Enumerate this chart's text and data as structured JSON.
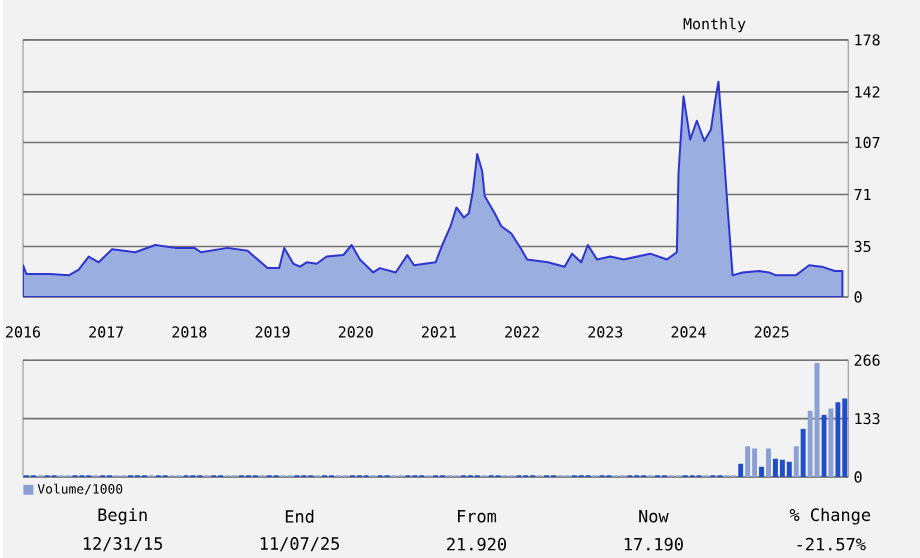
{
  "chart_data": [
    {
      "type": "area",
      "subtitle": "Monthly",
      "xlim": [
        2016.0,
        2025.92
      ],
      "ylim": [
        0,
        178
      ],
      "yticks": [
        0,
        35,
        71,
        107,
        142,
        178
      ],
      "xticks": [
        2016,
        2017,
        2018,
        2019,
        2020,
        2021,
        2022,
        2023,
        2024,
        2025
      ],
      "grid": "y",
      "series": [
        {
          "color": "#9aaee0",
          "x": [
            2016.0,
            2016.04,
            2016.32,
            2016.55,
            2016.67,
            2016.79,
            2016.91,
            2017.07,
            2017.35,
            2017.59,
            2017.83,
            2018.06,
            2018.14,
            2018.46,
            2018.7,
            2018.82,
            2018.94,
            2019.08,
            2019.14,
            2019.25,
            2019.33,
            2019.41,
            2019.53,
            2019.65,
            2019.85,
            2019.95,
            2020.05,
            2020.21,
            2020.29,
            2020.48,
            2020.62,
            2020.7,
            2020.96,
            2021.04,
            2021.14,
            2021.21,
            2021.3,
            2021.36,
            2021.41,
            2021.46,
            2021.52,
            2021.55,
            2021.67,
            2021.75,
            2021.87,
            2021.99,
            2022.06,
            2022.31,
            2022.51,
            2022.6,
            2022.71,
            2022.79,
            2022.9,
            2023.06,
            2023.22,
            2023.54,
            2023.74,
            2023.86,
            2023.88,
            2023.94,
            2024.02,
            2024.1,
            2024.19,
            2024.27,
            2024.32,
            2024.36,
            2024.41,
            2024.44,
            2024.48,
            2024.53,
            2024.65,
            2024.85,
            2024.97,
            2025.05,
            2025.29,
            2025.45,
            2025.6,
            2025.76,
            2025.85
          ],
          "values": [
            22,
            16,
            16,
            15,
            19,
            28,
            24,
            33,
            31,
            36,
            34,
            34,
            31,
            34,
            32,
            26,
            20,
            20,
            34,
            23,
            21,
            24,
            23,
            28,
            29,
            36,
            26,
            17,
            20,
            17,
            29,
            22,
            24,
            36,
            49,
            62,
            55,
            58,
            74,
            99,
            87,
            70,
            58,
            49,
            44,
            33,
            26,
            24,
            21,
            30,
            24,
            36,
            26,
            28,
            26,
            30,
            26,
            31,
            86,
            139,
            109,
            122,
            108,
            116,
            136,
            149,
            111,
            86,
            54,
            15,
            17,
            18,
            17,
            15,
            15,
            22,
            21,
            18,
            18
          ]
        }
      ]
    },
    {
      "type": "bar",
      "ylim": [
        0,
        266
      ],
      "yticks": [
        0,
        133,
        266
      ],
      "grid": "y",
      "tick_labels": "y",
      "legend": "bottom left",
      "categories": [
        null,
        null,
        null,
        null,
        null,
        null,
        null,
        null,
        null,
        null,
        null,
        null,
        null,
        null,
        null,
        null,
        null,
        null,
        null,
        null,
        null,
        null,
        null,
        null,
        null,
        null,
        null,
        null,
        null,
        null,
        null,
        null,
        null,
        null,
        null,
        null,
        null,
        null,
        null,
        null,
        null,
        null,
        null,
        null,
        null,
        null,
        null,
        null,
        null,
        null,
        null,
        null,
        null,
        null,
        null,
        null,
        null,
        null,
        null,
        null,
        null,
        null,
        null,
        null,
        null,
        null,
        null,
        null,
        null,
        null,
        null,
        null,
        null,
        null,
        null,
        null,
        null,
        null,
        null,
        null,
        null,
        null,
        null,
        null,
        null,
        null,
        null,
        null,
        null,
        null,
        null,
        null,
        null,
        null,
        null,
        null,
        null,
        null,
        null,
        null,
        null,
        null,
        null,
        null,
        null,
        null,
        null,
        null,
        null,
        null,
        null,
        null,
        null,
        null,
        null,
        null,
        null,
        null,
        null
      ],
      "series": [
        {
          "name": "Volume/1000",
          "color": "#8a9fd4",
          "values": [
            4,
            4,
            4,
            4,
            4,
            4,
            4,
            4,
            4,
            4,
            4,
            4,
            4,
            4,
            4,
            4,
            4,
            4,
            4,
            4,
            4,
            4,
            4,
            4,
            4,
            4,
            4,
            4,
            4,
            4,
            4,
            4,
            4,
            4,
            4,
            4,
            4,
            4,
            4,
            4,
            4,
            4,
            4,
            4,
            4,
            4,
            4,
            4,
            4,
            4,
            4,
            4,
            4,
            4,
            4,
            4,
            4,
            4,
            4,
            4,
            4,
            4,
            4,
            4,
            4,
            4,
            4,
            4,
            4,
            4,
            4,
            4,
            4,
            4,
            4,
            4,
            4,
            4,
            4,
            4,
            4,
            4,
            4,
            4,
            4,
            4,
            4,
            4,
            4,
            4,
            4,
            4,
            4,
            4,
            4,
            4,
            4,
            4,
            4,
            4,
            4,
            4,
            4,
            30,
            70,
            65,
            24,
            65,
            42,
            39,
            35,
            70,
            110,
            151,
            260,
            142,
            156,
            170,
            179
          ],
          "colors": [
            "#1f4fc8",
            "#1f4fc8",
            "#8a9fd4",
            "#1f4fc8",
            "#1f4fc8",
            "#8a9fd4",
            "#8a9fd4",
            "#1f4fc8",
            "#1f4fc8",
            "#1f4fc8",
            "#8a9fd4",
            "#1f4fc8",
            "#1f4fc8",
            "#8a9fd4",
            "#8a9fd4",
            "#1f4fc8",
            "#1f4fc8",
            "#1f4fc8",
            "#8a9fd4",
            "#1f4fc8",
            "#1f4fc8",
            "#8a9fd4",
            "#8a9fd4",
            "#1f4fc8",
            "#1f4fc8",
            "#1f4fc8",
            "#8a9fd4",
            "#1f4fc8",
            "#1f4fc8",
            "#8a9fd4",
            "#8a9fd4",
            "#1f4fc8",
            "#1f4fc8",
            "#1f4fc8",
            "#8a9fd4",
            "#1f4fc8",
            "#1f4fc8",
            "#8a9fd4",
            "#8a9fd4",
            "#1f4fc8",
            "#1f4fc8",
            "#1f4fc8",
            "#8a9fd4",
            "#1f4fc8",
            "#1f4fc8",
            "#8a9fd4",
            "#8a9fd4",
            "#1f4fc8",
            "#1f4fc8",
            "#1f4fc8",
            "#8a9fd4",
            "#1f4fc8",
            "#1f4fc8",
            "#8a9fd4",
            "#8a9fd4",
            "#1f4fc8",
            "#1f4fc8",
            "#1f4fc8",
            "#8a9fd4",
            "#1f4fc8",
            "#1f4fc8",
            "#8a9fd4",
            "#8a9fd4",
            "#1f4fc8",
            "#1f4fc8",
            "#1f4fc8",
            "#8a9fd4",
            "#1f4fc8",
            "#1f4fc8",
            "#8a9fd4",
            "#8a9fd4",
            "#1f4fc8",
            "#1f4fc8",
            "#1f4fc8",
            "#8a9fd4",
            "#1f4fc8",
            "#1f4fc8",
            "#8a9fd4",
            "#8a9fd4",
            "#1f4fc8",
            "#1f4fc8",
            "#1f4fc8",
            "#8a9fd4",
            "#1f4fc8",
            "#1f4fc8",
            "#8a9fd4",
            "#8a9fd4",
            "#1f4fc8",
            "#1f4fc8",
            "#1f4fc8",
            "#8a9fd4",
            "#1f4fc8",
            "#1f4fc8",
            "#8a9fd4",
            "#8a9fd4",
            "#1f4fc8",
            "#1f4fc8",
            "#1f4fc8",
            "#8a9fd4",
            "#1f4fc8",
            "#1f4fc8",
            "#8a9fd4",
            "#8a9fd4",
            "#1f4fc8",
            "#8a9fd4",
            "#8a9fd4",
            "#1f4fc8",
            "#8a9fd4",
            "#1f4fc8",
            "#1f4fc8",
            "#1f4fc8",
            "#8a9fd4",
            "#1f4fc8",
            "#8a9fd4",
            "#8a9fd4",
            "#1f4fc8",
            "#8a9fd4",
            "#1f4fc8",
            "#1f4fc8"
          ]
        }
      ]
    },
    {
      "type": "other",
      "annotations": [
        "Begin",
        "12/31/15",
        "End",
        "11/07/25",
        "From",
        "21.920",
        "Now",
        "17.190",
        "% Change",
        "-21.57%"
      ]
    }
  ]
}
